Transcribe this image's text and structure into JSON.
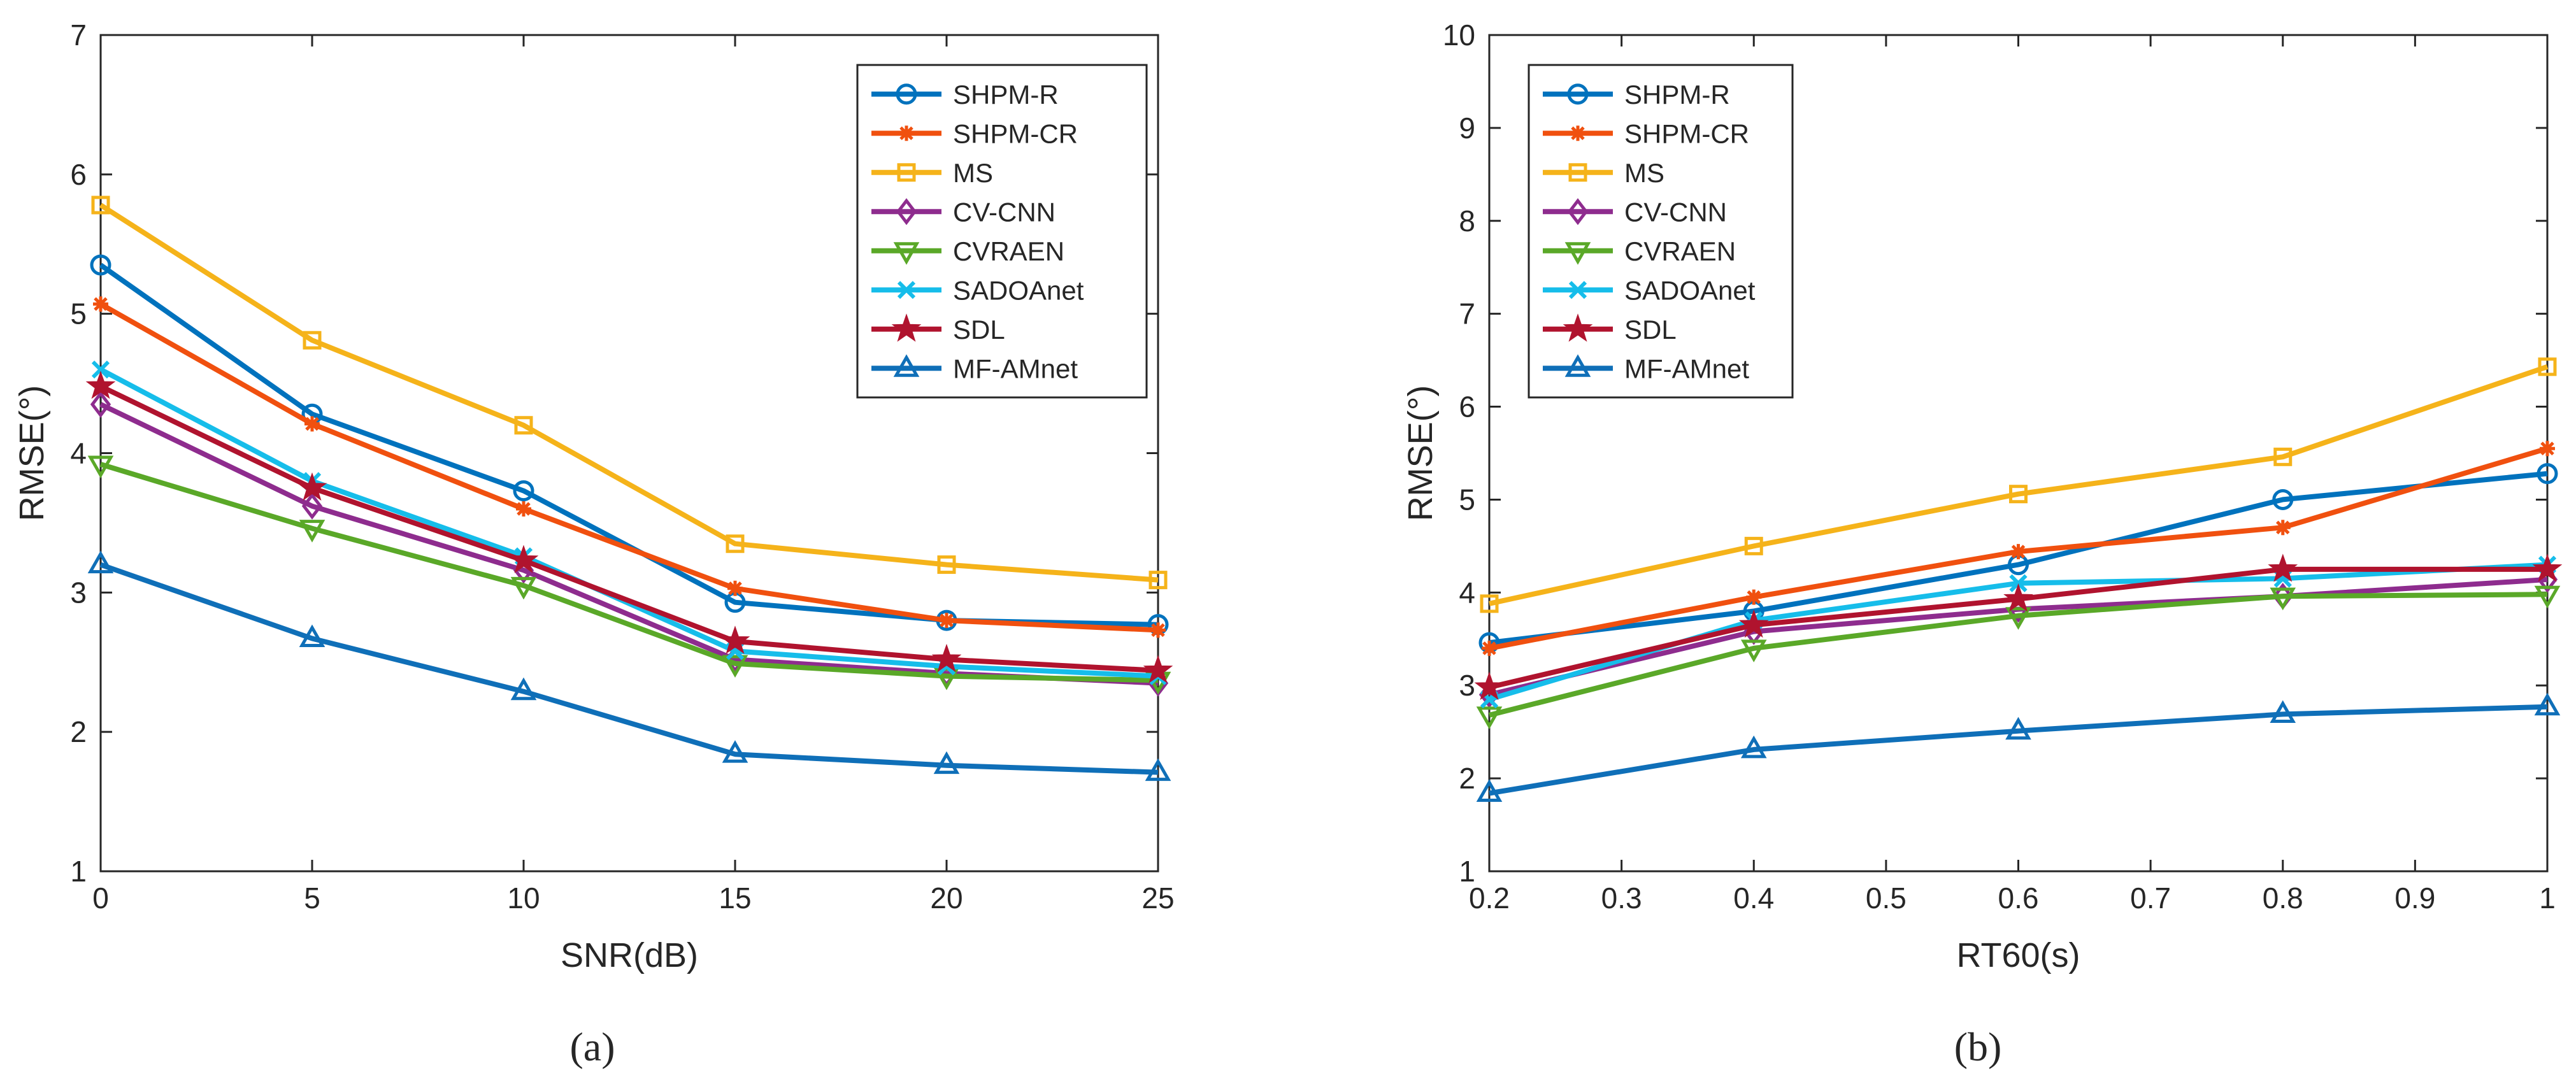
{
  "figure": {
    "panels": [
      {
        "id": "a",
        "label": "(a)"
      },
      {
        "id": "b",
        "label": "(b)"
      }
    ]
  },
  "styles": {
    "SHPM-R": {
      "color": "#0072BD",
      "marker": "circle"
    },
    "SHPM-CR": {
      "color": "#F0500F",
      "marker": "asterisk"
    },
    "MS": {
      "color": "#F5B31A",
      "marker": "square"
    },
    "CV-CNN": {
      "color": "#8E2C8E",
      "marker": "diamond"
    },
    "CVRAEN": {
      "color": "#5AA828",
      "marker": "triangle-down"
    },
    "SADOAnet": {
      "color": "#16BDEA",
      "marker": "x"
    },
    "SDL": {
      "color": "#B0132E",
      "marker": "star"
    },
    "MF-AMnet": {
      "color": "#0F6FB8",
      "marker": "triangle-up"
    }
  },
  "chart_data": [
    {
      "type": "line",
      "panel_label": "(a)",
      "xlabel": "SNR(dB)",
      "ylabel": "RMSE(°)",
      "x": [
        0,
        5,
        10,
        15,
        20,
        25
      ],
      "xlim": [
        0,
        25
      ],
      "ylim": [
        1,
        7
      ],
      "xticks": [
        0,
        5,
        10,
        15,
        20,
        25
      ],
      "xtick_labels": [
        "0",
        "5",
        "10",
        "15",
        "20",
        "25"
      ],
      "yticks": [
        1,
        2,
        3,
        4,
        5,
        6,
        7
      ],
      "ytick_labels": [
        "1",
        "2",
        "3",
        "4",
        "5",
        "6",
        "7"
      ],
      "legend_position": "top-right",
      "grid": false,
      "series": [
        {
          "name": "SHPM-R",
          "values": [
            5.35,
            4.28,
            3.73,
            2.93,
            2.8,
            2.77
          ]
        },
        {
          "name": "SHPM-CR",
          "values": [
            5.07,
            4.21,
            3.6,
            3.03,
            2.8,
            2.73
          ]
        },
        {
          "name": "MS",
          "values": [
            5.78,
            4.81,
            4.2,
            3.35,
            3.2,
            3.09
          ]
        },
        {
          "name": "CV-CNN",
          "values": [
            4.35,
            3.62,
            3.16,
            2.52,
            2.42,
            2.35
          ]
        },
        {
          "name": "CVRAEN",
          "values": [
            3.92,
            3.46,
            3.05,
            2.49,
            2.4,
            2.37
          ]
        },
        {
          "name": "SADOAnet",
          "values": [
            4.6,
            3.8,
            3.26,
            2.58,
            2.47,
            2.4
          ]
        },
        {
          "name": "SDL",
          "values": [
            4.48,
            3.75,
            3.23,
            2.65,
            2.52,
            2.44
          ]
        },
        {
          "name": "MF-AMnet",
          "values": [
            3.2,
            2.67,
            2.29,
            1.84,
            1.76,
            1.71
          ]
        }
      ]
    },
    {
      "type": "line",
      "panel_label": "(b)",
      "xlabel": "RT60(s)",
      "ylabel": "RMSE(°)",
      "x": [
        0.2,
        0.4,
        0.6,
        0.8,
        1.0
      ],
      "xlim": [
        0.2,
        1.0
      ],
      "ylim": [
        1,
        10
      ],
      "xticks": [
        0.2,
        0.3,
        0.4,
        0.5,
        0.6,
        0.7,
        0.8,
        0.9,
        1.0
      ],
      "xtick_labels": [
        "0.2",
        "0.3",
        "0.4",
        "0.5",
        "0.6",
        "0.7",
        "0.8",
        "0.9",
        "1"
      ],
      "yticks": [
        1,
        2,
        3,
        4,
        5,
        6,
        7,
        8,
        9,
        10
      ],
      "ytick_labels": [
        "1",
        "2",
        "3",
        "4",
        "5",
        "6",
        "7",
        "8",
        "9",
        "10"
      ],
      "legend_position": "top-left",
      "grid": false,
      "series": [
        {
          "name": "SHPM-R",
          "values": [
            3.46,
            3.8,
            4.3,
            5.0,
            5.28
          ]
        },
        {
          "name": "SHPM-CR",
          "values": [
            3.4,
            3.95,
            4.44,
            4.7,
            5.55
          ]
        },
        {
          "name": "MS",
          "values": [
            3.88,
            4.5,
            5.06,
            5.46,
            6.43
          ]
        },
        {
          "name": "CV-CNN",
          "values": [
            2.9,
            3.58,
            3.82,
            3.96,
            4.14
          ]
        },
        {
          "name": "CVRAEN",
          "values": [
            2.68,
            3.4,
            3.75,
            3.96,
            3.98
          ]
        },
        {
          "name": "SADOAnet",
          "values": [
            2.85,
            3.7,
            4.1,
            4.15,
            4.3
          ]
        },
        {
          "name": "SDL",
          "values": [
            2.98,
            3.65,
            3.93,
            4.25,
            4.25
          ]
        },
        {
          "name": "MF-AMnet",
          "values": [
            1.84,
            2.31,
            2.51,
            2.69,
            2.77
          ]
        }
      ]
    }
  ]
}
